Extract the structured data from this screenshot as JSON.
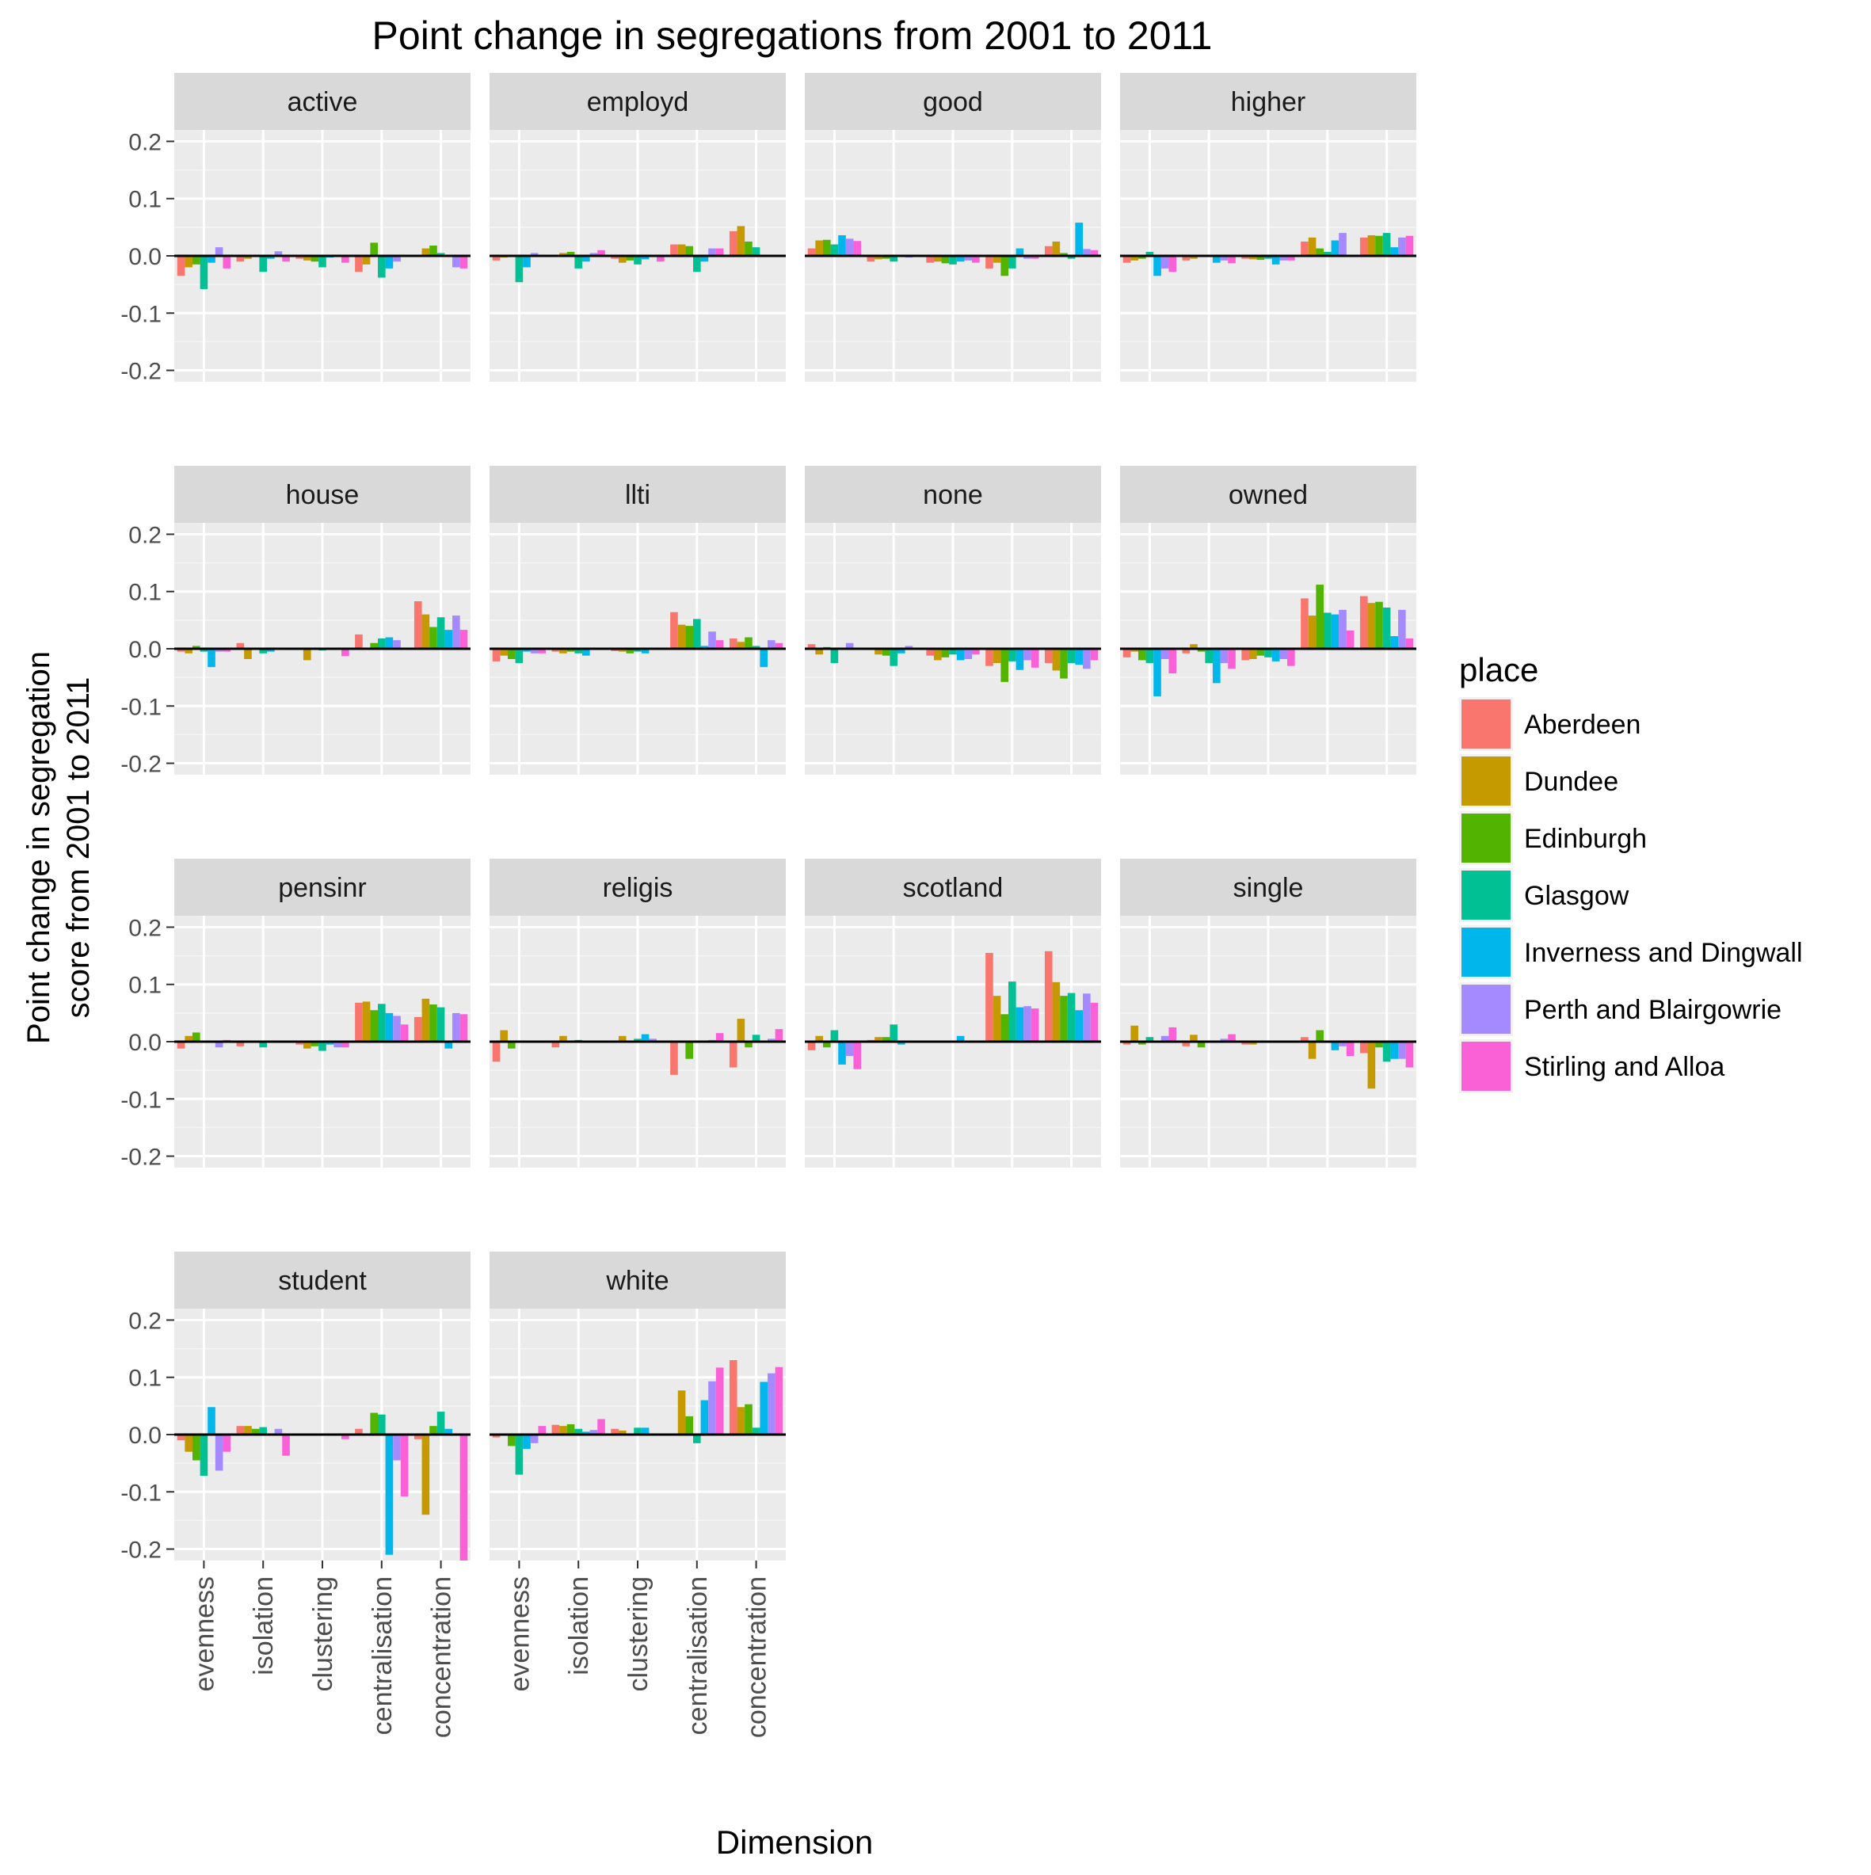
{
  "chart_data": {
    "type": "bar",
    "title": "Point change in segregations from 2001 to 2011",
    "xlabel": "Dimension",
    "ylabel_lines": [
      "Point change in segregation",
      "score from 2001 to 2011"
    ],
    "ylim": [
      -0.22,
      0.22
    ],
    "yticks": [
      -0.2,
      -0.1,
      0.0,
      0.1,
      0.2
    ],
    "ytick_labels": [
      "-0.2",
      "-0.1",
      "0.0",
      "0.1",
      "0.2"
    ],
    "categories": [
      "evenness",
      "isolation",
      "clustering",
      "centralisation",
      "concentration"
    ],
    "legend": {
      "title": "place",
      "entries": [
        {
          "name": "Aberdeen",
          "color": "#F8766D"
        },
        {
          "name": "Dundee",
          "color": "#C49A00"
        },
        {
          "name": "Edinburgh",
          "color": "#53B400"
        },
        {
          "name": "Glasgow",
          "color": "#00C094"
        },
        {
          "name": "Inverness and Dingwall",
          "color": "#00B6EB"
        },
        {
          "name": "Perth and Blairgowrie",
          "color": "#A58AFF"
        },
        {
          "name": "Stirling and Alloa",
          "color": "#FB61D7"
        }
      ]
    },
    "panels": [
      {
        "name": "active",
        "values": [
          [
            -0.035,
            -0.02,
            -0.015,
            -0.058,
            -0.012,
            0.015,
            -0.022
          ],
          [
            -0.01,
            -0.005,
            0.0,
            -0.028,
            -0.005,
            0.008,
            -0.01
          ],
          [
            -0.005,
            -0.008,
            -0.01,
            -0.02,
            -0.003,
            0.0,
            -0.012
          ],
          [
            -0.028,
            -0.015,
            0.023,
            -0.038,
            -0.022,
            -0.01,
            0.0
          ],
          [
            0.0,
            0.013,
            0.018,
            0.005,
            0.0,
            -0.02,
            -0.022
          ]
        ]
      },
      {
        "name": "employd",
        "values": [
          [
            -0.008,
            -0.003,
            -0.002,
            -0.046,
            -0.02,
            0.005,
            0.0
          ],
          [
            0.0,
            0.005,
            0.007,
            -0.022,
            -0.01,
            0.005,
            0.01
          ],
          [
            -0.005,
            -0.012,
            -0.008,
            -0.015,
            -0.006,
            0.0,
            -0.01
          ],
          [
            0.02,
            0.02,
            0.017,
            -0.028,
            -0.01,
            0.013,
            0.013
          ],
          [
            0.043,
            0.052,
            0.025,
            0.015,
            0.0,
            -0.002,
            -0.002
          ]
        ]
      },
      {
        "name": "good",
        "values": [
          [
            0.013,
            0.027,
            0.028,
            0.02,
            0.036,
            0.03,
            0.026
          ],
          [
            -0.01,
            -0.006,
            -0.005,
            -0.01,
            0.0,
            -0.003,
            0.0
          ],
          [
            -0.012,
            -0.01,
            -0.013,
            -0.015,
            -0.01,
            -0.008,
            -0.012
          ],
          [
            -0.022,
            -0.012,
            -0.035,
            -0.022,
            0.013,
            -0.005,
            -0.005
          ],
          [
            0.017,
            0.025,
            0.005,
            -0.005,
            0.058,
            0.012,
            0.01
          ]
        ]
      },
      {
        "name": "higher",
        "values": [
          [
            -0.012,
            -0.008,
            -0.005,
            0.007,
            -0.035,
            -0.022,
            -0.028
          ],
          [
            -0.008,
            -0.005,
            0.0,
            0.0,
            -0.012,
            -0.008,
            -0.013
          ],
          [
            -0.005,
            -0.006,
            -0.007,
            -0.005,
            -0.015,
            -0.008,
            -0.008
          ],
          [
            0.025,
            0.032,
            0.013,
            0.007,
            0.027,
            0.04,
            0.0
          ],
          [
            0.032,
            0.036,
            0.035,
            0.04,
            0.015,
            0.032,
            0.035
          ]
        ]
      },
      {
        "name": "house",
        "values": [
          [
            -0.005,
            -0.008,
            0.005,
            -0.005,
            -0.032,
            -0.005,
            -0.005
          ],
          [
            0.01,
            -0.018,
            0.0,
            -0.008,
            -0.005,
            0.0,
            0.0
          ],
          [
            0.0,
            -0.02,
            0.0,
            -0.003,
            0.0,
            0.0,
            -0.013
          ],
          [
            0.025,
            0.0,
            0.01,
            0.018,
            0.02,
            0.015,
            0.0
          ],
          [
            0.083,
            0.06,
            0.038,
            0.055,
            0.033,
            0.058,
            0.033
          ]
        ]
      },
      {
        "name": "llti",
        "values": [
          [
            -0.022,
            -0.012,
            -0.018,
            -0.025,
            -0.005,
            -0.008,
            -0.008
          ],
          [
            -0.005,
            -0.008,
            -0.005,
            -0.008,
            -0.012,
            0.0,
            0.0
          ],
          [
            -0.004,
            -0.005,
            -0.008,
            -0.005,
            -0.008,
            0.0,
            0.0
          ],
          [
            0.064,
            0.042,
            0.04,
            0.052,
            0.005,
            0.03,
            0.015
          ],
          [
            0.018,
            0.012,
            0.02,
            0.005,
            -0.032,
            0.015,
            0.01
          ]
        ]
      },
      {
        "name": "none",
        "values": [
          [
            0.008,
            -0.01,
            0.003,
            -0.025,
            0.0,
            0.01,
            0.0
          ],
          [
            0.0,
            -0.01,
            -0.012,
            -0.03,
            -0.008,
            0.005,
            0.0
          ],
          [
            -0.012,
            -0.02,
            -0.015,
            -0.01,
            -0.02,
            -0.018,
            -0.01
          ],
          [
            -0.03,
            -0.025,
            -0.058,
            -0.022,
            -0.037,
            -0.02,
            -0.033
          ],
          [
            -0.025,
            -0.038,
            -0.052,
            -0.025,
            -0.028,
            -0.035,
            -0.02
          ]
        ]
      },
      {
        "name": "owned",
        "values": [
          [
            -0.015,
            -0.005,
            -0.02,
            -0.025,
            -0.083,
            -0.018,
            -0.043
          ],
          [
            -0.008,
            0.008,
            -0.005,
            -0.025,
            -0.06,
            -0.025,
            -0.035
          ],
          [
            -0.02,
            -0.018,
            -0.012,
            -0.015,
            -0.022,
            -0.018,
            -0.03
          ],
          [
            0.088,
            0.058,
            0.112,
            0.063,
            0.06,
            0.068,
            0.032
          ],
          [
            0.092,
            0.08,
            0.082,
            0.072,
            0.022,
            0.068,
            0.018
          ]
        ]
      },
      {
        "name": "pensinr",
        "values": [
          [
            -0.012,
            0.01,
            0.016,
            0.0,
            0.0,
            -0.01,
            0.003
          ],
          [
            -0.008,
            0.0,
            0.0,
            -0.01,
            0.0,
            0.0,
            0.0
          ],
          [
            -0.005,
            -0.012,
            -0.008,
            -0.016,
            -0.005,
            -0.01,
            -0.01
          ],
          [
            0.068,
            0.07,
            0.055,
            0.066,
            0.05,
            0.045,
            0.03
          ],
          [
            0.043,
            0.075,
            0.065,
            0.06,
            -0.012,
            0.05,
            0.048
          ]
        ]
      },
      {
        "name": "religis",
        "values": [
          [
            -0.035,
            0.02,
            -0.012,
            0.0,
            0.0,
            0.0,
            0.0
          ],
          [
            -0.01,
            0.01,
            0.0,
            0.003,
            0.0,
            0.0,
            0.0
          ],
          [
            0.0,
            0.01,
            0.0,
            0.005,
            0.013,
            0.005,
            0.0
          ],
          [
            -0.058,
            0.0,
            -0.03,
            0.0,
            0.0,
            0.003,
            0.015
          ],
          [
            -0.045,
            0.04,
            -0.01,
            0.012,
            0.0,
            0.005,
            0.022
          ]
        ]
      },
      {
        "name": "scotland",
        "values": [
          [
            -0.015,
            0.01,
            -0.01,
            0.02,
            -0.04,
            -0.025,
            -0.048
          ],
          [
            0.003,
            0.008,
            0.008,
            0.03,
            -0.005,
            0.0,
            0.0
          ],
          [
            0.0,
            0.0,
            0.0,
            0.0,
            0.01,
            0.0,
            0.0
          ],
          [
            0.155,
            0.08,
            0.048,
            0.105,
            0.06,
            0.062,
            0.058
          ],
          [
            0.158,
            0.104,
            0.08,
            0.085,
            0.055,
            0.084,
            0.068
          ]
        ]
      },
      {
        "name": "single",
        "values": [
          [
            -0.005,
            0.028,
            -0.005,
            0.008,
            0.0,
            0.01,
            0.025
          ],
          [
            -0.008,
            0.012,
            -0.01,
            0.0,
            0.0,
            0.005,
            0.013
          ],
          [
            -0.005,
            -0.005,
            0.0,
            0.0,
            0.0,
            0.0,
            0.0
          ],
          [
            0.008,
            -0.03,
            0.02,
            0.0,
            -0.015,
            -0.008,
            -0.025
          ],
          [
            -0.02,
            -0.082,
            -0.01,
            -0.035,
            -0.03,
            -0.03,
            -0.045
          ]
        ]
      },
      {
        "name": "student",
        "values": [
          [
            -0.01,
            -0.03,
            -0.045,
            -0.072,
            0.048,
            -0.063,
            -0.03
          ],
          [
            0.015,
            0.015,
            0.01,
            0.013,
            0.0,
            0.01,
            -0.037
          ],
          [
            0.0,
            0.0,
            0.0,
            0.002,
            0.0,
            0.0,
            -0.008
          ],
          [
            0.01,
            0.0,
            0.038,
            0.035,
            -0.21,
            -0.045,
            -0.108
          ],
          [
            -0.008,
            -0.14,
            0.015,
            0.04,
            0.01,
            0.0,
            -0.225
          ]
        ]
      },
      {
        "name": "white",
        "values": [
          [
            -0.005,
            0.0,
            -0.02,
            -0.07,
            -0.025,
            -0.015,
            0.015
          ],
          [
            0.017,
            0.015,
            0.018,
            0.01,
            0.005,
            0.008,
            0.027
          ],
          [
            0.01,
            0.007,
            0.0,
            0.012,
            0.012,
            0.0,
            0.0
          ],
          [
            0.0,
            0.077,
            0.032,
            -0.015,
            0.06,
            0.093,
            0.117
          ],
          [
            0.13,
            0.048,
            0.053,
            0.012,
            0.092,
            0.107,
            0.118
          ]
        ]
      }
    ]
  }
}
